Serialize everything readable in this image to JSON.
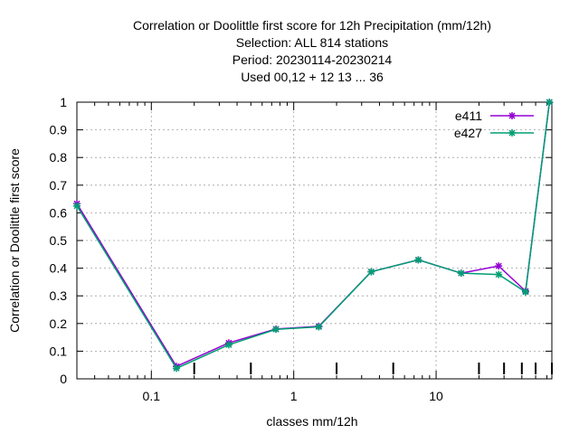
{
  "chart_data": {
    "type": "line",
    "title_lines": [
      "Correlation or Doolittle first score  for 12h Precipitation (mm/12h)",
      "Selection: ALL    814 stations",
      "Period: 20230114-20230214",
      "Used  00,12  + 12 13 ... 36"
    ],
    "xlabel": "classes mm/12h",
    "ylabel": "Correlation or Doolittle first score",
    "x_scale": "log",
    "xlim": [
      0.03,
      65
    ],
    "ylim": [
      0,
      1
    ],
    "x_ticks": [
      {
        "value": 0.1,
        "label": "0.1"
      },
      {
        "value": 1,
        "label": "1"
      },
      {
        "value": 10,
        "label": "10"
      }
    ],
    "y_ticks": [
      {
        "value": 0,
        "label": "0"
      },
      {
        "value": 0.1,
        "label": "0.1"
      },
      {
        "value": 0.2,
        "label": "0.2"
      },
      {
        "value": 0.3,
        "label": "0.3"
      },
      {
        "value": 0.4,
        "label": "0.4"
      },
      {
        "value": 0.5,
        "label": "0.5"
      },
      {
        "value": 0.6,
        "label": "0.6"
      },
      {
        "value": 0.7,
        "label": "0.7"
      },
      {
        "value": 0.8,
        "label": "0.8"
      },
      {
        "value": 0.9,
        "label": "0.9"
      },
      {
        "value": 1,
        "label": "1"
      }
    ],
    "class_ticks": [
      0.2,
      0.5,
      2,
      5,
      20,
      30,
      40,
      50,
      65
    ],
    "grid": true,
    "legend_position": "top-right",
    "x": [
      0.03,
      0.15,
      0.35,
      0.75,
      1.5,
      3.5,
      7.5,
      15,
      27.5,
      42.5,
      62.5
    ],
    "series": [
      {
        "name": "e411",
        "color": "#9400d3",
        "marker": "star",
        "values": [
          0.633,
          0.045,
          0.13,
          0.18,
          0.19,
          0.387,
          0.43,
          0.382,
          0.408,
          0.317,
          1.0
        ]
      },
      {
        "name": "e427",
        "color": "#009e73",
        "marker": "star",
        "values": [
          0.625,
          0.038,
          0.123,
          0.179,
          0.188,
          0.387,
          0.43,
          0.382,
          0.377,
          0.314,
          1.0
        ]
      }
    ]
  }
}
